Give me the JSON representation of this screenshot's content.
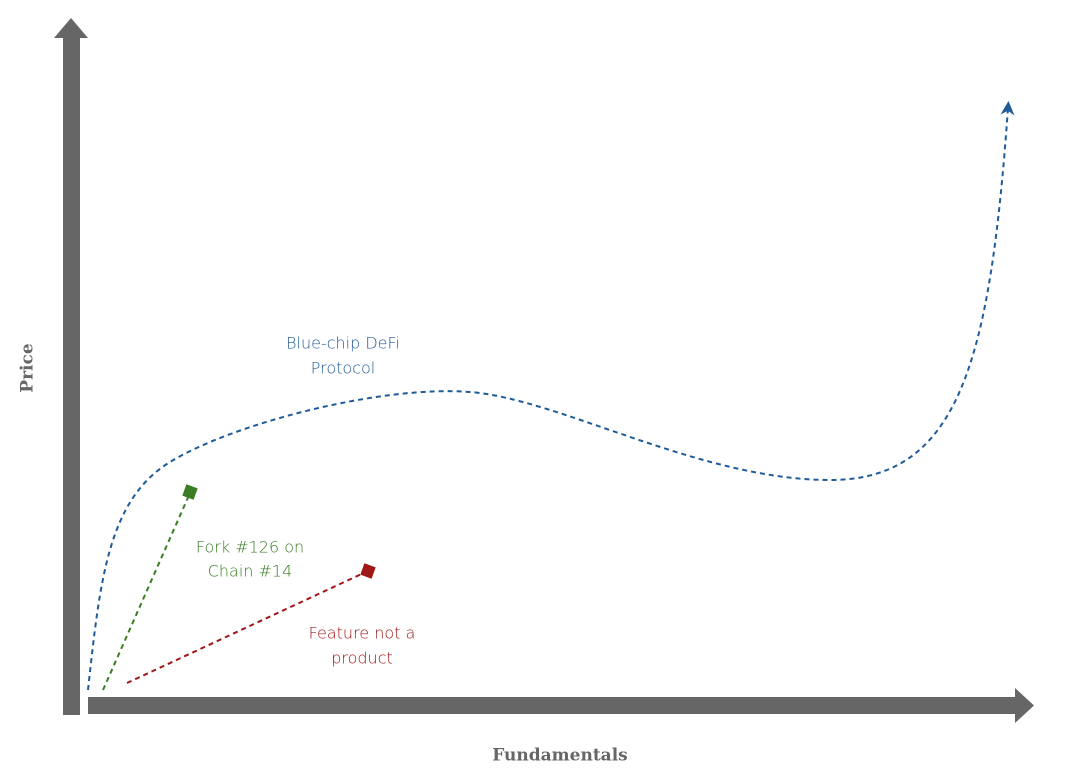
{
  "axes": {
    "y_label": "Price",
    "x_label": "Fundamentals"
  },
  "curves": [
    {
      "label_lines": [
        "Blue-chip DeFi",
        "Protocol"
      ]
    },
    {
      "label_lines": [
        "Fork #126 on",
        "Chain #14"
      ]
    },
    {
      "label_lines": [
        "Feature not a",
        "product"
      ]
    }
  ]
}
